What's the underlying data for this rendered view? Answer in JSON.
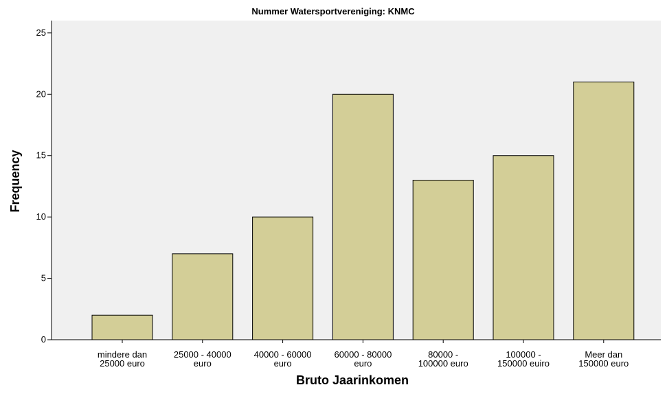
{
  "chart_data": {
    "type": "bar",
    "title": "Nummer Watersportvereniging: KNMC",
    "xlabel": "Bruto Jaarinkomen",
    "ylabel": "Frequency",
    "categories": [
      [
        "mindere dan",
        "25000 euro"
      ],
      [
        "25000 - 40000",
        "euro"
      ],
      [
        "40000 - 60000",
        "euro"
      ],
      [
        "60000 - 80000",
        "euro"
      ],
      [
        "80000 -",
        "100000 euro"
      ],
      [
        "100000 -",
        "150000 euiro"
      ],
      [
        "Meer dan",
        "150000 euro"
      ]
    ],
    "values": [
      2,
      7,
      10,
      20,
      13,
      15,
      21
    ],
    "ylim": [
      0,
      26
    ],
    "yticks": [
      0,
      5,
      10,
      15,
      20,
      25
    ],
    "grid": false,
    "colors": {
      "bar_fill": "#d3ce97",
      "plot_background": "#f0f0f0",
      "bar_stroke": "#000000"
    }
  }
}
